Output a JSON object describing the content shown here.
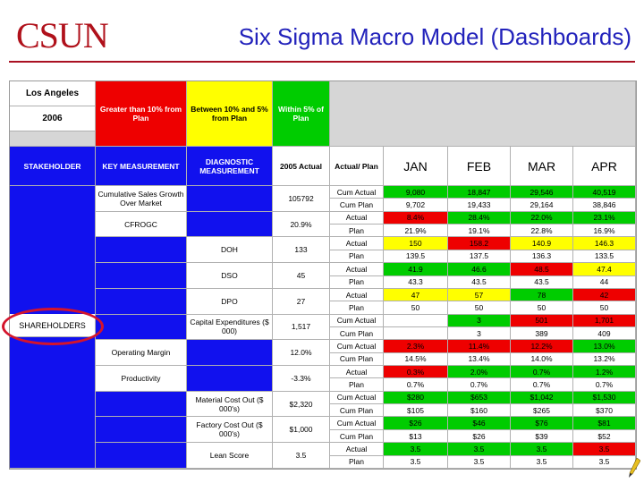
{
  "header": {
    "logo": "CSUN",
    "title": "Six Sigma Macro Model (Dashboards)"
  },
  "legend": {
    "region": "Los Angeles",
    "year": "2006",
    "red": "Greater than 10% from Plan",
    "yellow": "Between 10% and 5% from Plan",
    "green": "Within 5% of Plan"
  },
  "columns": {
    "stakeholder": "STAKEHOLDER",
    "key": "KEY MEASUREMENT",
    "diag": "DIAGNOSTIC MEASUREMENT",
    "actual2005": "2005 Actual",
    "type": "Actual/ Plan",
    "months": [
      "JAN",
      "FEB",
      "MAR",
      "APR"
    ]
  },
  "stakeholder_label": "SHAREHOLDERS",
  "measures": [
    {
      "key": "Cumulative Sales Growth Over Market",
      "diag": "",
      "a2005": "105792"
    },
    {
      "key": "CFROGC",
      "diag": "",
      "a2005": "20.9%"
    },
    {
      "key": "",
      "diag": "DOH",
      "a2005": "133"
    },
    {
      "key": "",
      "diag": "DSO",
      "a2005": "45"
    },
    {
      "key": "",
      "diag": "DPO",
      "a2005": "27"
    },
    {
      "key": "",
      "diag": "Capital Expenditures ($ 000)",
      "a2005": "1,517"
    },
    {
      "key": "Operating Margin",
      "diag": "",
      "a2005": "12.0%"
    },
    {
      "key": "Productivity",
      "diag": "",
      "a2005": "-3.3%"
    },
    {
      "key": "",
      "diag": "Material Cost Out ($ 000's)",
      "a2005": "$2,320"
    },
    {
      "key": "",
      "diag": "Factory Cost Out ($ 000's)",
      "a2005": "$1,000"
    },
    {
      "key": "",
      "diag": "Lean Score",
      "a2005": "3.5"
    }
  ],
  "rows": [
    {
      "label": "Cum Actual",
      "values": [
        "9,080",
        "18,847",
        "29,546",
        "40,519"
      ],
      "colors": [
        "green",
        "green",
        "green",
        "green"
      ]
    },
    {
      "label": "Cum Plan",
      "values": [
        "9,702",
        "19,433",
        "29,164",
        "38,846"
      ],
      "colors": [
        "white",
        "white",
        "white",
        "white"
      ]
    },
    {
      "label": "Actual",
      "values": [
        "8.4%",
        "28.4%",
        "22.0%",
        "23.1%"
      ],
      "colors": [
        "red",
        "green",
        "green",
        "green"
      ]
    },
    {
      "label": "Plan",
      "values": [
        "21.9%",
        "19.1%",
        "22.8%",
        "16.9%"
      ],
      "colors": [
        "white",
        "white",
        "white",
        "white"
      ]
    },
    {
      "label": "Actual",
      "values": [
        "150",
        "158.2",
        "140.9",
        "146.3"
      ],
      "colors": [
        "yellow",
        "red",
        "yellow",
        "yellow"
      ]
    },
    {
      "label": "Plan",
      "values": [
        "139.5",
        "137.5",
        "136.3",
        "133.5"
      ],
      "colors": [
        "white",
        "white",
        "white",
        "white"
      ]
    },
    {
      "label": "Actual",
      "values": [
        "41.9",
        "46.6",
        "48.5",
        "47.4"
      ],
      "colors": [
        "green",
        "green",
        "red",
        "yellow"
      ]
    },
    {
      "label": "Plan",
      "values": [
        "43.3",
        "43.5",
        "43.5",
        "44"
      ],
      "colors": [
        "white",
        "white",
        "white",
        "white"
      ]
    },
    {
      "label": "Actual",
      "values": [
        "47",
        "57",
        "78",
        "42"
      ],
      "colors": [
        "yellow",
        "yellow",
        "green",
        "red"
      ]
    },
    {
      "label": "Plan",
      "values": [
        "50",
        "50",
        "50",
        "50"
      ],
      "colors": [
        "white",
        "white",
        "white",
        "white"
      ]
    },
    {
      "label": "Cum Actual",
      "values": [
        "",
        "3",
        "501",
        "1,701"
      ],
      "colors": [
        "white",
        "green",
        "red",
        "red"
      ]
    },
    {
      "label": "Cum Plan",
      "values": [
        "",
        "3",
        "389",
        "409"
      ],
      "colors": [
        "white",
        "white",
        "white",
        "white"
      ]
    },
    {
      "label": "Cum Actual",
      "values": [
        "2.3%",
        "11.4%",
        "12.2%",
        "13.0%"
      ],
      "colors": [
        "red",
        "red",
        "red",
        "green"
      ]
    },
    {
      "label": "Cum Plan",
      "values": [
        "14.5%",
        "13.4%",
        "14.0%",
        "13.2%"
      ],
      "colors": [
        "white",
        "white",
        "white",
        "white"
      ]
    },
    {
      "label": "Actual",
      "values": [
        "0.3%",
        "2.0%",
        "0.7%",
        "1.2%"
      ],
      "colors": [
        "red",
        "green",
        "green",
        "green"
      ]
    },
    {
      "label": "Plan",
      "values": [
        "0.7%",
        "0.7%",
        "0.7%",
        "0.7%"
      ],
      "colors": [
        "white",
        "white",
        "white",
        "white"
      ]
    },
    {
      "label": "Cum Actual",
      "values": [
        "$280",
        "$653",
        "$1,042",
        "$1,530"
      ],
      "colors": [
        "green",
        "green",
        "green",
        "green"
      ]
    },
    {
      "label": "Cum Plan",
      "values": [
        "$105",
        "$160",
        "$265",
        "$370"
      ],
      "colors": [
        "white",
        "white",
        "white",
        "white"
      ]
    },
    {
      "label": "Cum Actual",
      "values": [
        "$26",
        "$46",
        "$76",
        "$81"
      ],
      "colors": [
        "green",
        "green",
        "green",
        "green"
      ]
    },
    {
      "label": "Cum Plan",
      "values": [
        "$13",
        "$26",
        "$39",
        "$52"
      ],
      "colors": [
        "white",
        "white",
        "white",
        "white"
      ]
    },
    {
      "label": "Actual",
      "values": [
        "3.5",
        "3.5",
        "3.5",
        "3.5"
      ],
      "colors": [
        "green",
        "green",
        "green",
        "red"
      ]
    },
    {
      "label": "Plan",
      "values": [
        "3.5",
        "3.5",
        "3.5",
        "3.5"
      ],
      "colors": [
        "white",
        "white",
        "white",
        "white"
      ]
    }
  ],
  "colors": {
    "red": "#ee0000",
    "yellow": "#ffff00",
    "green": "#00cc00",
    "blue": "#1111ee",
    "accent": "#2222bb"
  }
}
